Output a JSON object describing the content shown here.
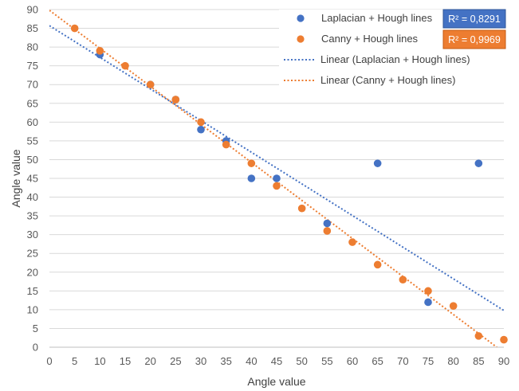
{
  "chart_data": {
    "type": "scatter",
    "title": "",
    "xlabel": "Angle value",
    "ylabel": "Angle value",
    "xlim": [
      0,
      90
    ],
    "ylim": [
      0,
      90
    ],
    "x_ticks": [
      0,
      5,
      10,
      15,
      20,
      25,
      30,
      35,
      40,
      45,
      50,
      55,
      60,
      65,
      70,
      75,
      80,
      85,
      90
    ],
    "y_ticks": [
      0,
      5,
      10,
      15,
      20,
      25,
      30,
      35,
      40,
      45,
      50,
      55,
      60,
      65,
      70,
      75,
      80,
      85,
      90
    ],
    "grid": "horizontal",
    "legend_position": "top-right",
    "series": [
      {
        "name": "Laplacian + Hough lines",
        "color": "#4472c4",
        "points": [
          [
            10,
            78
          ],
          [
            20,
            70
          ],
          [
            25,
            66
          ],
          [
            30,
            58
          ],
          [
            35,
            55
          ],
          [
            40,
            45
          ],
          [
            45,
            45
          ],
          [
            55,
            33
          ],
          [
            65,
            49
          ],
          [
            75,
            12
          ],
          [
            85,
            49
          ]
        ],
        "trendline": {
          "name": "Linear (Laplacian + Hough lines)",
          "x": [
            0,
            90
          ],
          "y": [
            85.7,
            9.8
          ],
          "r2_label": "R² = 0,8291"
        }
      },
      {
        "name": "Canny + Hough lines",
        "color": "#ed7d31",
        "points": [
          [
            5,
            85
          ],
          [
            10,
            79
          ],
          [
            15,
            75
          ],
          [
            20,
            70
          ],
          [
            25,
            66
          ],
          [
            30,
            60
          ],
          [
            35,
            54
          ],
          [
            40,
            49
          ],
          [
            45,
            43
          ],
          [
            50,
            37
          ],
          [
            55,
            31
          ],
          [
            60,
            28
          ],
          [
            65,
            22
          ],
          [
            70,
            18
          ],
          [
            75,
            15
          ],
          [
            80,
            11
          ],
          [
            85,
            3
          ],
          [
            90,
            2
          ]
        ],
        "trendline": {
          "name": "Linear (Canny + Hough lines)",
          "x": [
            0,
            88.6
          ],
          "y": [
            89.8,
            0
          ],
          "r2_label": "R² = 0,9969"
        }
      }
    ]
  }
}
